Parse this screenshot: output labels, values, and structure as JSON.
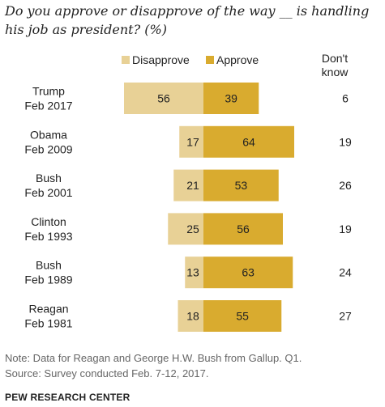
{
  "title": "Do you approve or disapprove of the way __ is handling his job as president? (%)",
  "legend": {
    "disapprove": "Disapprove",
    "approve": "Approve",
    "dont_know": "Don't know"
  },
  "colors": {
    "disapprove": "#E8D196",
    "approve": "#D9AB2F"
  },
  "note": "Note: Data for Reagan and George H.W. Bush from Gallup. Q1.",
  "source": "Source: Survey conducted Feb. 7-12, 2017.",
  "brand": "PEW RESEARCH CENTER",
  "chart_data": {
    "type": "bar",
    "categories": [
      "Trump Feb 2017",
      "Obama Feb 2009",
      "Bush Feb 2001",
      "Clinton Feb 1993",
      "Bush Feb 1989",
      "Reagan Feb 1981"
    ],
    "labels": [
      [
        "Trump",
        "Feb 2017"
      ],
      [
        "Obama",
        "Feb 2009"
      ],
      [
        "Bush",
        "Feb 2001"
      ],
      [
        "Clinton",
        "Feb 1993"
      ],
      [
        "Bush",
        "Feb 1989"
      ],
      [
        "Reagan",
        "Feb 1981"
      ]
    ],
    "series": [
      {
        "name": "Disapprove",
        "values": [
          56,
          17,
          21,
          25,
          13,
          18
        ]
      },
      {
        "name": "Approve",
        "values": [
          39,
          64,
          53,
          56,
          63,
          55
        ]
      },
      {
        "name": "Don't know",
        "values": [
          6,
          19,
          26,
          19,
          24,
          27
        ]
      }
    ]
  }
}
